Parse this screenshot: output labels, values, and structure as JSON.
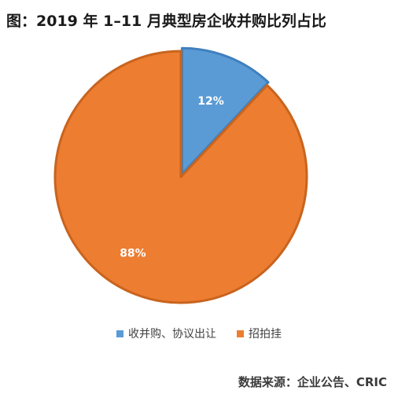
{
  "chart_data": {
    "type": "pie",
    "title": "图：2019 年 1–11 月典型房企收并购比列占比",
    "categories": [
      "收并购、协议出让",
      "招拍挂"
    ],
    "values": [
      12,
      88
    ],
    "labels": [
      "12%",
      "88%"
    ],
    "colors": [
      "#5B9BD5",
      "#ED7D31"
    ],
    "legend_position": "bottom",
    "exploded_slice": "收并购、协议出让"
  },
  "source": "数据来源：企业公告、CRIC"
}
